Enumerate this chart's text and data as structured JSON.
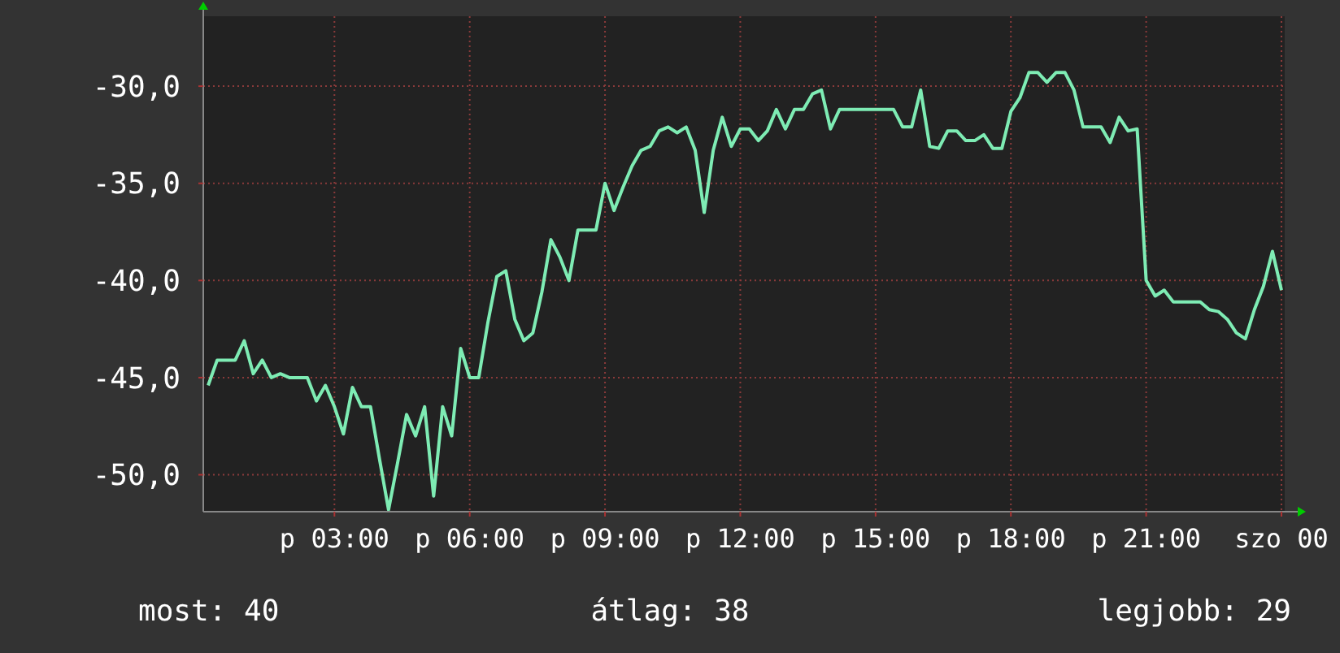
{
  "chart_data": {
    "type": "line",
    "categories": [
      null,
      null,
      null,
      null,
      null,
      null,
      null,
      null,
      null,
      null,
      null,
      null,
      null,
      null,
      "p 03:00",
      null,
      null,
      null,
      null,
      null,
      null,
      null,
      null,
      null,
      null,
      null,
      null,
      null,
      null,
      "p 06:00",
      null,
      null,
      null,
      null,
      null,
      null,
      null,
      null,
      null,
      null,
      null,
      null,
      null,
      null,
      "p 09:00",
      null,
      null,
      null,
      null,
      null,
      null,
      null,
      null,
      null,
      null,
      null,
      null,
      null,
      null,
      "p 12:00",
      null,
      null,
      null,
      null,
      null,
      null,
      null,
      null,
      null,
      null,
      null,
      null,
      null,
      null,
      "p 15:00",
      null,
      null,
      null,
      null,
      null,
      null,
      null,
      null,
      null,
      null,
      null,
      null,
      null,
      null,
      "p 18:00",
      null,
      null,
      null,
      null,
      null,
      null,
      null,
      null,
      null,
      null,
      null,
      null,
      null,
      null,
      "p 21:00",
      null,
      null,
      null,
      null,
      null,
      null,
      null,
      null,
      null,
      null,
      null,
      null,
      null,
      null,
      "szo 00"
    ],
    "series": [
      {
        "color": "#7eecb4",
        "values": [
          -45.4,
          -44.1,
          -44.1,
          -44.1,
          -43.1,
          -44.8,
          -44.1,
          -45.0,
          -44.8,
          -45.0,
          -45.0,
          -45.0,
          -46.2,
          -45.4,
          -46.5,
          -47.9,
          -45.5,
          -46.5,
          -46.5,
          -49.2,
          -51.8,
          -49.4,
          -46.9,
          -48.0,
          -46.5,
          -51.1,
          -46.5,
          -48.0,
          -43.5,
          -45.0,
          -45.0,
          -42.2,
          -39.8,
          -39.5,
          -42.0,
          -43.1,
          -42.7,
          -40.6,
          -37.9,
          -38.8,
          -40.0,
          -37.4,
          -37.4,
          -37.4,
          -35.0,
          -36.4,
          -35.2,
          -34.1,
          -33.3,
          -33.1,
          -32.3,
          -32.1,
          -32.4,
          -32.1,
          -33.3,
          -36.5,
          -33.3,
          -31.6,
          -33.1,
          -32.2,
          -32.2,
          -32.8,
          -32.3,
          -31.2,
          -32.2,
          -31.2,
          -31.2,
          -30.4,
          -30.2,
          -32.2,
          -31.2,
          -31.2,
          -31.2,
          -31.2,
          -31.2,
          -31.2,
          -31.2,
          -32.1,
          -32.1,
          -30.2,
          -33.1,
          -33.2,
          -32.3,
          -32.3,
          -32.8,
          -32.8,
          -32.5,
          -33.2,
          -33.2,
          -31.3,
          -30.6,
          -29.3,
          -29.3,
          -29.8,
          -29.3,
          -29.3,
          -30.2,
          -32.1,
          -32.1,
          -32.1,
          -32.9,
          -31.6,
          -32.3,
          -32.2,
          -40.0,
          -40.8,
          -40.5,
          -41.1,
          -41.1,
          -41.1,
          -41.1,
          -41.5,
          -41.6,
          -42.0,
          -42.7,
          -43.0,
          -41.5,
          -40.3,
          -38.5,
          -40.5
        ]
      }
    ],
    "ylim": [
      -51.9,
      -26.4
    ],
    "yticks": [
      {
        "value": -50,
        "label": "-50,0"
      },
      {
        "value": -45,
        "label": "-45,0"
      },
      {
        "value": -40,
        "label": "-40,0"
      },
      {
        "value": -35,
        "label": "-35,0"
      },
      {
        "value": -30,
        "label": "-30,0"
      }
    ],
    "grid": true,
    "annotations": [
      "most: 40",
      "átlag: 38",
      "legjobb: 29"
    ]
  }
}
